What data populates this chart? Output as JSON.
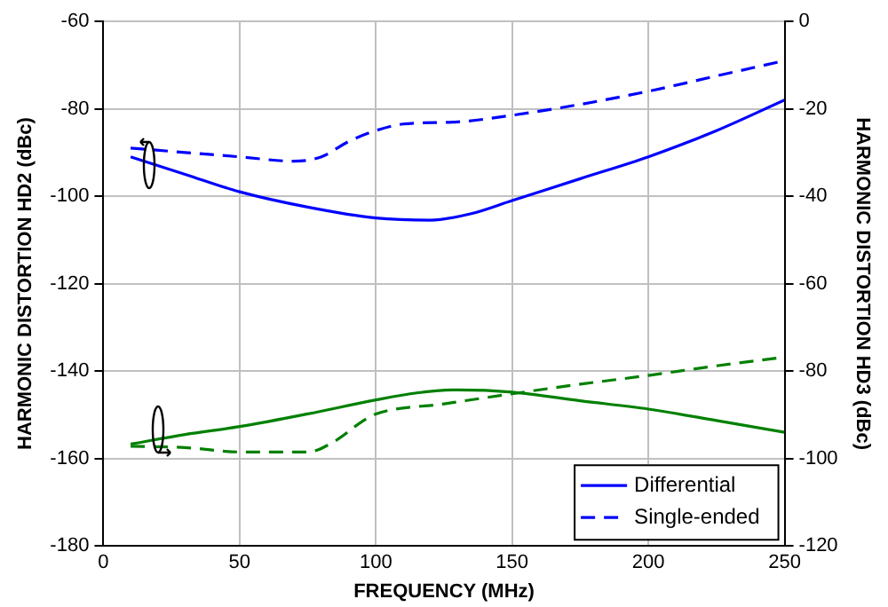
{
  "chart_data": {
    "type": "line",
    "xlabel": "FREQUENCY (MHz)",
    "ylabel": "HARMONIC DISTORTION HD2 (dBc)",
    "y2label": "HARMONIC DISTORTION HD3 (dBc)",
    "xlim": [
      0,
      250
    ],
    "xticks": [
      0,
      50,
      100,
      150,
      200,
      250
    ],
    "ylim": [
      -180,
      -60
    ],
    "yticks": [
      -180,
      -160,
      -140,
      -120,
      -100,
      -80,
      -60
    ],
    "y2lim": [
      -120,
      0
    ],
    "y2ticks": [
      -120,
      -100,
      -80,
      -60,
      -40,
      -20,
      0
    ],
    "grid": true,
    "legend": "bottom right",
    "marker": "none",
    "series": [
      {
        "name": "Differential",
        "color": "#0000ff",
        "line_style": "solid",
        "x": [
          10,
          30,
          50,
          75,
          100,
          120,
          135,
          150,
          175,
          200,
          225,
          250
        ],
        "values": [
          -91,
          -95,
          -99,
          -102.5,
          -105,
          -105.5,
          -104,
          -101,
          -96,
          -91,
          -85,
          -78
        ]
      },
      {
        "name": "Single-ended",
        "color": "#0000ff",
        "line_style": "dashed",
        "x": [
          10,
          30,
          50,
          70,
          80,
          90,
          100,
          110,
          130,
          150,
          175,
          200,
          225,
          250
        ],
        "values": [
          -89,
          -90,
          -91,
          -92,
          -91,
          -87.5,
          -85,
          -83.5,
          -83,
          -81.5,
          -79,
          -76,
          -72.5,
          -69
        ]
      },
      {
        "color": "#008000",
        "line_style": "solid",
        "axis": "y2",
        "x": [
          10,
          30,
          50,
          75,
          100,
          115,
          130,
          150,
          175,
          200,
          225,
          250
        ],
        "values": [
          -96.7,
          -94.5,
          -92.7,
          -89.8,
          -86.6,
          -85,
          -84.3,
          -84.8,
          -86.8,
          -88.7,
          -91.3,
          -94
        ]
      },
      {
        "color": "#008000",
        "line_style": "dashed",
        "axis": "y2",
        "x": [
          10,
          30,
          50,
          75,
          85,
          95,
          100,
          125,
          150,
          175,
          200,
          225,
          250
        ],
        "values": [
          -97.2,
          -97.5,
          -98.5,
          -98.5,
          -96,
          -91.5,
          -89.8,
          -87.5,
          -85.2,
          -83,
          -81,
          -78.8,
          -76.8
        ]
      }
    ]
  }
}
